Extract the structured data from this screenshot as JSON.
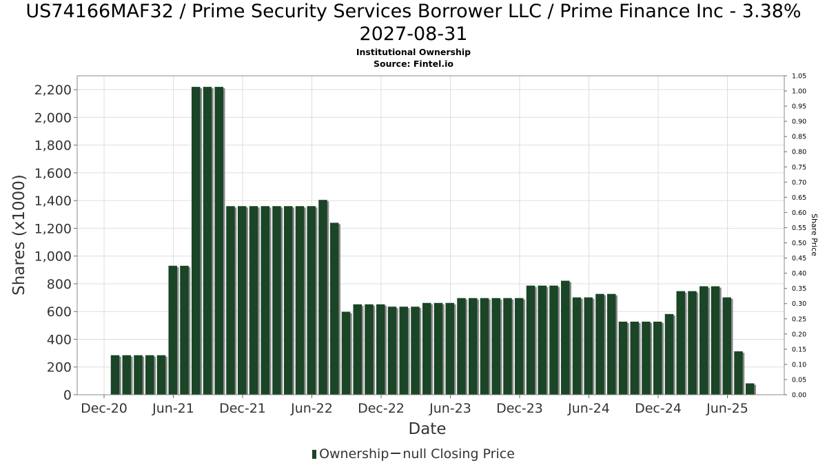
{
  "header": {
    "title_line1": "US74166MAF32 / Prime Security Services Borrower LLC / Prime Finance Inc - 3.38%",
    "title_line2": "2027-08-31",
    "subtitle": "Institutional Ownership",
    "source": "Source: Fintel.io"
  },
  "legend": {
    "ownership": "Ownership",
    "closing_price": "null Closing Price"
  },
  "chart_data": {
    "type": "bar",
    "xlabel": "Date",
    "ylabel": "Shares (x1000)",
    "y2label": "Share Price",
    "ylim": [
      0,
      2300
    ],
    "y2lim": [
      0,
      1.05
    ],
    "yticks": [
      "0",
      "200",
      "400",
      "600",
      "800",
      "1,000",
      "1,200",
      "1,400",
      "1,600",
      "1,800",
      "2,000",
      "2,200"
    ],
    "y2ticks": [
      "0.00",
      "0.05",
      "0.10",
      "0.15",
      "0.20",
      "0.25",
      "0.30",
      "0.35",
      "0.40",
      "0.45",
      "0.50",
      "0.55",
      "0.60",
      "0.65",
      "0.70",
      "0.75",
      "0.80",
      "0.85",
      "0.90",
      "0.95",
      "1.00",
      "1.05"
    ],
    "xticks": [
      "Dec-20",
      "Jun-21",
      "Dec-21",
      "Jun-22",
      "Dec-22",
      "Jun-23",
      "Dec-23",
      "Jun-24",
      "Dec-24",
      "Jun-25"
    ],
    "grid": true,
    "legend_position": "bottom",
    "colors": {
      "bar": "#1a4526",
      "bar_shadow": "#8a8a8a",
      "grid": "#dddddd",
      "frame": "#888888"
    },
    "series": [
      {
        "name": "Ownership",
        "values": [
          285,
          285,
          285,
          285,
          285,
          930,
          930,
          2220,
          2220,
          2220,
          1360,
          1360,
          1360,
          1360,
          1360,
          1360,
          1360,
          1360,
          1405,
          1240,
          598,
          652,
          652,
          652,
          635,
          635,
          635,
          662,
          662,
          662,
          697,
          697,
          697,
          697,
          697,
          697,
          787,
          787,
          787,
          822,
          702,
          702,
          727,
          727,
          527,
          527,
          527,
          527,
          582,
          747,
          747,
          782,
          782,
          702,
          313,
          82
        ]
      }
    ]
  }
}
